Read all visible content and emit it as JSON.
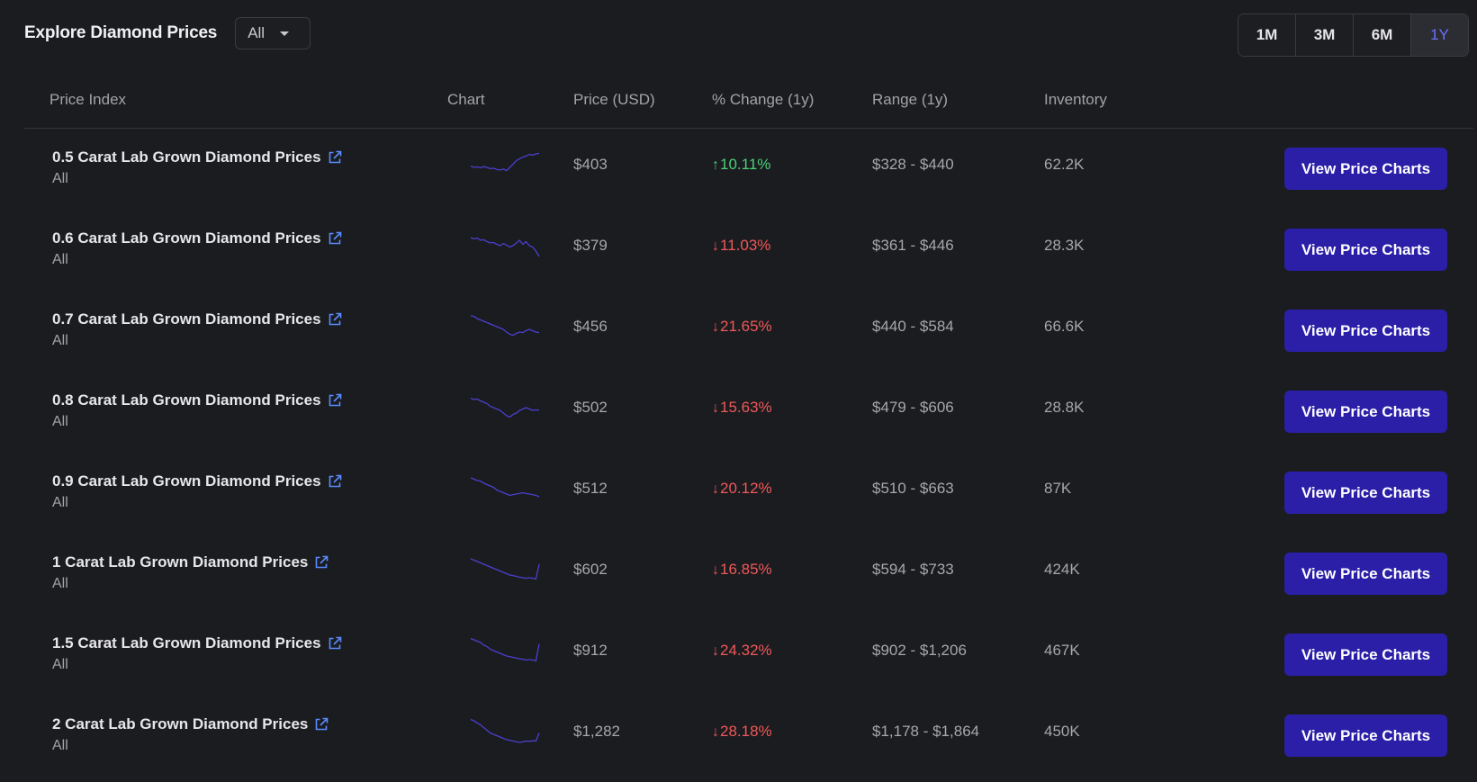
{
  "header": {
    "title": "Explore Diamond Prices",
    "filter_value": "All"
  },
  "ranges": [
    {
      "label": "1M",
      "active": false
    },
    {
      "label": "3M",
      "active": false
    },
    {
      "label": "6M",
      "active": false
    },
    {
      "label": "1Y",
      "active": true
    }
  ],
  "columns": {
    "index": "Price Index",
    "chart": "Chart",
    "price": "Price (USD)",
    "change": "% Change (1y)",
    "range": "Range (1y)",
    "inventory": "Inventory"
  },
  "colors": {
    "accent": "#2b1fa8",
    "active_range": "#6b70ff",
    "up": "#4ad07a",
    "down": "#f0585a",
    "sparkline": "#4b3fd0"
  },
  "rows": [
    {
      "name": "0.5 Carat Lab Grown Diamond Prices",
      "sub": "All",
      "price": "$403",
      "direction": "up",
      "change": "10.11%",
      "range": "$328 - $440",
      "inventory": "62.2K",
      "button": "View Price Charts",
      "trend": [
        0.55,
        0.6,
        0.58,
        0.62,
        0.57,
        0.6,
        0.65,
        0.63,
        0.68,
        0.7,
        0.66,
        0.72,
        0.6,
        0.48,
        0.35,
        0.28,
        0.22,
        0.18,
        0.12,
        0.15,
        0.1,
        0.08
      ]
    },
    {
      "name": "0.6 Carat Lab Grown Diamond Prices",
      "sub": "All",
      "price": "$379",
      "direction": "down",
      "change": "11.03%",
      "range": "$361 - $446",
      "inventory": "28.3K",
      "button": "View Price Charts",
      "trend": [
        0.2,
        0.25,
        0.22,
        0.3,
        0.28,
        0.35,
        0.4,
        0.38,
        0.45,
        0.5,
        0.42,
        0.48,
        0.55,
        0.5,
        0.4,
        0.3,
        0.45,
        0.35,
        0.5,
        0.55,
        0.7,
        0.9
      ]
    },
    {
      "name": "0.7 Carat Lab Grown Diamond Prices",
      "sub": "All",
      "price": "$456",
      "direction": "down",
      "change": "21.65%",
      "range": "$440 - $584",
      "inventory": "66.6K",
      "button": "View Price Charts",
      "trend": [
        0.1,
        0.12,
        0.2,
        0.25,
        0.3,
        0.35,
        0.4,
        0.45,
        0.5,
        0.55,
        0.6,
        0.7,
        0.78,
        0.82,
        0.75,
        0.7,
        0.72,
        0.65,
        0.6,
        0.65,
        0.7,
        0.72
      ]
    },
    {
      "name": "0.8 Carat Lab Grown Diamond Prices",
      "sub": "All",
      "price": "$502",
      "direction": "down",
      "change": "15.63%",
      "range": "$479 - $606",
      "inventory": "28.8K",
      "button": "View Price Charts",
      "trend": [
        0.15,
        0.2,
        0.18,
        0.25,
        0.3,
        0.35,
        0.45,
        0.5,
        0.55,
        0.6,
        0.7,
        0.8,
        0.85,
        0.75,
        0.7,
        0.6,
        0.55,
        0.5,
        0.55,
        0.6,
        0.58,
        0.6
      ]
    },
    {
      "name": "0.9 Carat Lab Grown Diamond Prices",
      "sub": "All",
      "price": "$512",
      "direction": "down",
      "change": "20.12%",
      "range": "$510 - $663",
      "inventory": "87K",
      "button": "View Price Charts",
      "trend": [
        0.1,
        0.15,
        0.2,
        0.22,
        0.3,
        0.35,
        0.4,
        0.45,
        0.55,
        0.6,
        0.65,
        0.7,
        0.75,
        0.72,
        0.7,
        0.68,
        0.65,
        0.68,
        0.7,
        0.72,
        0.75,
        0.8
      ]
    },
    {
      "name": "1 Carat Lab Grown Diamond Prices",
      "sub": "All",
      "price": "$602",
      "direction": "down",
      "change": "16.85%",
      "range": "$594 - $733",
      "inventory": "424K",
      "button": "View Price Charts",
      "trend": [
        0.1,
        0.15,
        0.2,
        0.25,
        0.3,
        0.35,
        0.4,
        0.45,
        0.5,
        0.55,
        0.6,
        0.65,
        0.7,
        0.72,
        0.75,
        0.78,
        0.8,
        0.82,
        0.8,
        0.82,
        0.85,
        0.3
      ]
    },
    {
      "name": "1.5 Carat Lab Grown Diamond Prices",
      "sub": "All",
      "price": "$912",
      "direction": "down",
      "change": "24.32%",
      "range": "$902 - $1,206",
      "inventory": "467K",
      "button": "View Price Charts",
      "trend": [
        0.05,
        0.1,
        0.15,
        0.2,
        0.3,
        0.35,
        0.45,
        0.5,
        0.55,
        0.6,
        0.65,
        0.7,
        0.72,
        0.75,
        0.78,
        0.8,
        0.82,
        0.85,
        0.83,
        0.85,
        0.88,
        0.25
      ]
    },
    {
      "name": "2 Carat Lab Grown Diamond Prices",
      "sub": "All",
      "price": "$1,282",
      "direction": "down",
      "change": "28.18%",
      "range": "$1,178 - $1,864",
      "inventory": "450K",
      "button": "View Price Charts",
      "trend": [
        0.05,
        0.1,
        0.18,
        0.25,
        0.35,
        0.45,
        0.55,
        0.6,
        0.65,
        0.7,
        0.75,
        0.8,
        0.82,
        0.85,
        0.88,
        0.9,
        0.88,
        0.85,
        0.86,
        0.84,
        0.85,
        0.55
      ]
    }
  ]
}
